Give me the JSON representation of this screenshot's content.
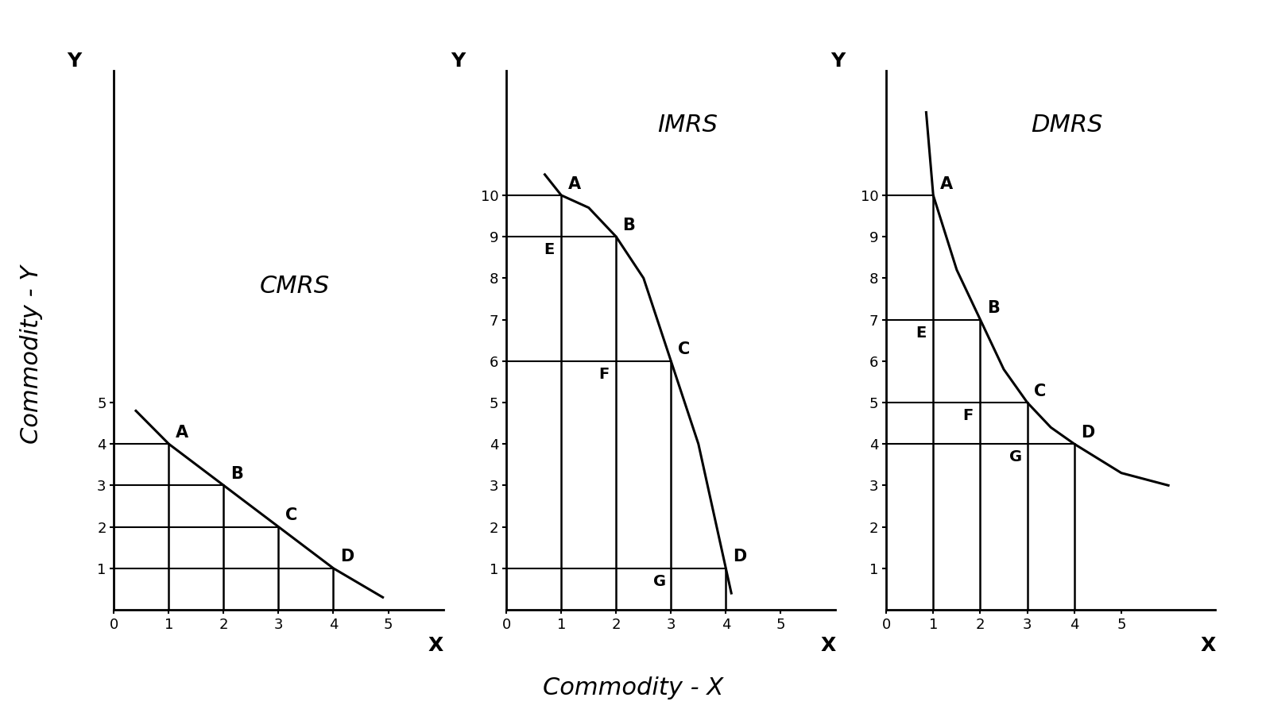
{
  "figure_texts": {
    "y_label": "Commodity - Y",
    "x_label": "Commodity - X"
  },
  "chart_data": [
    {
      "type": "line",
      "title": "CMRS",
      "x_label": "X",
      "y_label": "Y",
      "color": "#000000",
      "x": [
        0.4,
        1,
        2,
        3,
        4,
        4.9
      ],
      "values": [
        4.8,
        4,
        3,
        2,
        1,
        0.3
      ],
      "point_labels": [
        null,
        "A",
        "B",
        "C",
        "D",
        null
      ],
      "annotations": [],
      "xlim": [
        0,
        6
      ],
      "ylim": [
        0,
        13
      ],
      "xticks": [
        0,
        1,
        2,
        3,
        4,
        5
      ],
      "yticks": [
        1,
        2,
        3,
        4,
        5
      ]
    },
    {
      "type": "line",
      "title": "IMRS",
      "x_label": "X",
      "y_label": "Y",
      "color": "#000000",
      "x": [
        0.7,
        1,
        1.5,
        2,
        2.5,
        3,
        3.5,
        4,
        4.1
      ],
      "values": [
        10.5,
        10,
        9.7,
        9,
        8,
        6,
        4,
        1,
        0.4
      ],
      "point_labels": [
        null,
        "A",
        null,
        "B",
        null,
        "C",
        null,
        "D",
        null
      ],
      "annotations": [
        {
          "text": "E",
          "x": 1,
          "y": 9
        },
        {
          "text": "F",
          "x": 2,
          "y": 6
        },
        {
          "text": "G",
          "x": 3,
          "y": 1
        }
      ],
      "xlim": [
        0,
        6
      ],
      "ylim": [
        0,
        13
      ],
      "xticks": [
        0,
        1,
        2,
        3,
        4,
        5
      ],
      "yticks": [
        1,
        2,
        3,
        4,
        5,
        6,
        7,
        8,
        9,
        10
      ]
    },
    {
      "type": "line",
      "title": "DMRS",
      "x_label": "X",
      "y_label": "Y",
      "color": "#000000",
      "x": [
        0.85,
        1,
        1.5,
        2,
        2.5,
        3,
        3.5,
        4,
        5,
        6
      ],
      "values": [
        12,
        10,
        8.2,
        7,
        5.8,
        5,
        4.4,
        4,
        3.3,
        3
      ],
      "point_labels": [
        null,
        "A",
        null,
        "B",
        null,
        "C",
        null,
        "D",
        null,
        null
      ],
      "annotations": [
        {
          "text": "E",
          "x": 1,
          "y": 7
        },
        {
          "text": "F",
          "x": 2,
          "y": 5
        },
        {
          "text": "G",
          "x": 3,
          "y": 4
        }
      ],
      "xlim": [
        0,
        7
      ],
      "ylim": [
        0,
        13
      ],
      "xticks": [
        0,
        1,
        2,
        3,
        4,
        5
      ],
      "yticks": [
        1,
        2,
        3,
        4,
        5,
        6,
        7,
        8,
        9,
        10
      ]
    }
  ]
}
